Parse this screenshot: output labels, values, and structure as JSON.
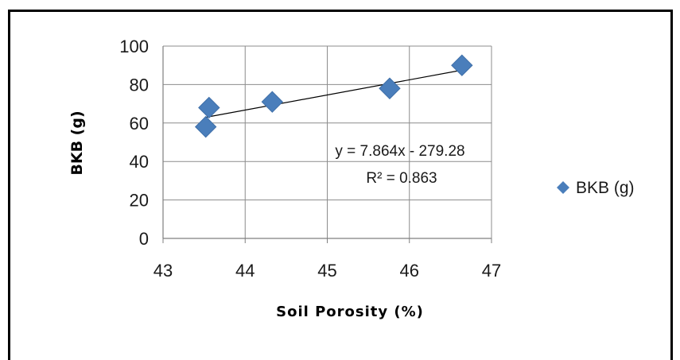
{
  "chart_data": {
    "type": "scatter",
    "xlabel": "Soil Porosity (%)",
    "ylabel": "BKB (g)",
    "xlim": [
      43,
      47
    ],
    "ylim": [
      0,
      100
    ],
    "xticks": [
      43,
      44,
      45,
      46,
      47
    ],
    "yticks": [
      0,
      20,
      40,
      60,
      80,
      100
    ],
    "grid": "horizontal",
    "legend": "right",
    "series": [
      {
        "name": "BKB (g)",
        "color": "#4a7ebb",
        "marker": "diamond",
        "x": [
          43.52,
          43.56,
          44.33,
          45.76,
          46.64
        ],
        "y": [
          58,
          68,
          71,
          78,
          90
        ]
      }
    ],
    "trendline": {
      "type": "linear",
      "slope": 7.864,
      "intercept": -279.28,
      "x_range": [
        43.52,
        46.64
      ],
      "equation": "y = 7.864x - 279.28",
      "r2": "R² = 0.863"
    }
  }
}
